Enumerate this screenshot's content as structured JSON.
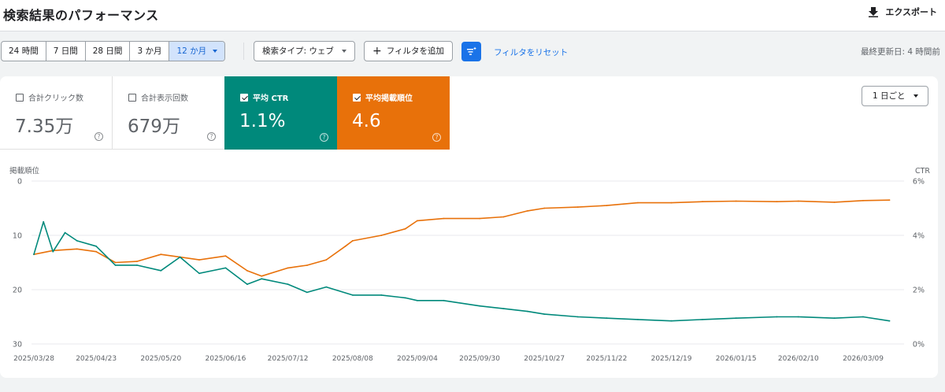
{
  "header": {
    "title": "検索結果のパフォーマンス",
    "export_label": "エクスポート"
  },
  "toolbar": {
    "ranges": [
      {
        "label": "24 時間",
        "active": false
      },
      {
        "label": "7 日間",
        "active": false
      },
      {
        "label": "28 日間",
        "active": false
      },
      {
        "label": "3 か月",
        "active": false
      },
      {
        "label": "12 か月",
        "active": true
      }
    ],
    "search_type_label": "検索タイプ: ウェブ",
    "add_filter_label": "フィルタを追加",
    "reset_label": "フィルタをリセット",
    "last_updated": "最終更新日: 4 時間前"
  },
  "metrics": [
    {
      "label": "合計クリック数",
      "value": "7.35万",
      "checked": false
    },
    {
      "label": "合計表示回数",
      "value": "679万",
      "checked": false
    },
    {
      "label": "平均 CTR",
      "value": "1.1%",
      "checked": true,
      "color": "#00897b"
    },
    {
      "label": "平均掲載順位",
      "value": "4.6",
      "checked": true,
      "color": "#e8710a"
    }
  ],
  "period_select": "1 日ごと",
  "chart_data": {
    "type": "line",
    "left_axis_label": "掲載順位",
    "right_axis_label": "CTR",
    "left_ticks": [
      "0",
      "10",
      "20",
      "30"
    ],
    "right_ticks": [
      "6%",
      "4%",
      "2%",
      "0%"
    ],
    "left_range": [
      0,
      30
    ],
    "right_range": [
      0,
      6
    ],
    "left_inverted": true,
    "x_ticks": [
      "2025/03/28",
      "2025/04/23",
      "2025/05/20",
      "2025/06/16",
      "2025/07/12",
      "2025/08/08",
      "2025/09/04",
      "2025/09/30",
      "2025/10/27",
      "2025/11/22",
      "2025/12/19",
      "2026/01/15",
      "2026/02/10",
      "2026/03/09"
    ],
    "series": [
      {
        "name": "平均掲載順位",
        "axis": "left",
        "color": "#e8710a",
        "points": [
          [
            "2025/03/28",
            13.5
          ],
          [
            "2025/04/05",
            12.8
          ],
          [
            "2025/04/15",
            12.5
          ],
          [
            "2025/04/23",
            13.0
          ],
          [
            "2025/05/01",
            15.0
          ],
          [
            "2025/05/10",
            14.8
          ],
          [
            "2025/05/20",
            13.5
          ],
          [
            "2025/05/28",
            14.0
          ],
          [
            "2025/06/05",
            14.5
          ],
          [
            "2025/06/16",
            13.8
          ],
          [
            "2025/06/25",
            16.5
          ],
          [
            "2025/07/01",
            17.5
          ],
          [
            "2025/07/12",
            16.0
          ],
          [
            "2025/07/20",
            15.5
          ],
          [
            "2025/07/28",
            14.5
          ],
          [
            "2025/08/05",
            12.0
          ],
          [
            "2025/08/08",
            11.0
          ],
          [
            "2025/08/20",
            10.0
          ],
          [
            "2025/08/30",
            8.8
          ],
          [
            "2025/09/04",
            7.3
          ],
          [
            "2025/09/15",
            6.9
          ],
          [
            "2025/09/30",
            6.9
          ],
          [
            "2025/10/10",
            6.6
          ],
          [
            "2025/10/20",
            5.5
          ],
          [
            "2025/10/27",
            5.0
          ],
          [
            "2025/11/10",
            4.8
          ],
          [
            "2025/11/22",
            4.5
          ],
          [
            "2025/12/05",
            4.0
          ],
          [
            "2025/12/19",
            4.0
          ],
          [
            "2026/01/01",
            3.8
          ],
          [
            "2026/01/15",
            3.7
          ],
          [
            "2026/02/01",
            3.8
          ],
          [
            "2026/02/10",
            3.7
          ],
          [
            "2026/02/25",
            3.9
          ],
          [
            "2026/03/09",
            3.6
          ],
          [
            "2026/03/20",
            3.5
          ]
        ]
      },
      {
        "name": "平均 CTR",
        "axis": "right",
        "color": "#00897b",
        "points": [
          [
            "2025/03/28",
            3.3
          ],
          [
            "2025/04/01",
            4.5
          ],
          [
            "2025/04/05",
            3.4
          ],
          [
            "2025/04/10",
            4.1
          ],
          [
            "2025/04/15",
            3.8
          ],
          [
            "2025/04/23",
            3.6
          ],
          [
            "2025/05/01",
            2.9
          ],
          [
            "2025/05/10",
            2.9
          ],
          [
            "2025/05/20",
            2.7
          ],
          [
            "2025/05/28",
            3.2
          ],
          [
            "2025/06/05",
            2.6
          ],
          [
            "2025/06/16",
            2.8
          ],
          [
            "2025/06/25",
            2.2
          ],
          [
            "2025/07/01",
            2.4
          ],
          [
            "2025/07/12",
            2.2
          ],
          [
            "2025/07/20",
            1.9
          ],
          [
            "2025/07/28",
            2.1
          ],
          [
            "2025/08/08",
            1.8
          ],
          [
            "2025/08/20",
            1.8
          ],
          [
            "2025/08/30",
            1.7
          ],
          [
            "2025/09/04",
            1.6
          ],
          [
            "2025/09/15",
            1.6
          ],
          [
            "2025/09/30",
            1.4
          ],
          [
            "2025/10/10",
            1.3
          ],
          [
            "2025/10/20",
            1.2
          ],
          [
            "2025/10/27",
            1.1
          ],
          [
            "2025/11/10",
            1.0
          ],
          [
            "2025/11/22",
            0.95
          ],
          [
            "2025/12/05",
            0.9
          ],
          [
            "2025/12/19",
            0.85
          ],
          [
            "2026/01/01",
            0.9
          ],
          [
            "2026/01/15",
            0.95
          ],
          [
            "2026/02/01",
            1.0
          ],
          [
            "2026/02/10",
            1.0
          ],
          [
            "2026/02/25",
            0.95
          ],
          [
            "2026/03/09",
            1.0
          ],
          [
            "2026/03/20",
            0.85
          ]
        ]
      }
    ]
  }
}
